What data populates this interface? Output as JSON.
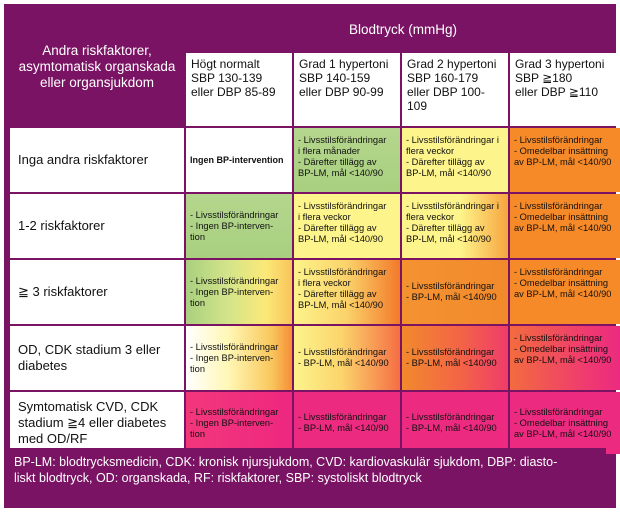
{
  "header": {
    "left": "Andra riskfaktorer, asymtomatisk organskada eller organsjukdom",
    "top": "Blodtryck (mmHg)"
  },
  "grades": [
    {
      "line1": "Högt normalt",
      "line2": "SBP 130-139",
      "line3": "eller DBP 85-89"
    },
    {
      "line1": "Grad 1 hypertoni",
      "line2": "SBP 140-159",
      "line3": "eller DBP 90-99"
    },
    {
      "line1": "Grad 2 hypertoni",
      "line2": "SBP 160-179",
      "line3": "eller DBP 100-109"
    },
    {
      "line1": "Grad 3 hypertoni",
      "line2": "SBP ≧180",
      "line3": "eller DBP ≧110"
    }
  ],
  "rows": [
    {
      "label": "Inga andra riskfaktorer",
      "cells": [
        "Ingen BP-intervention",
        "- Livsstilsförändringar\ni flera månader\n- Därefter tillägg av\nBP-LM, mål <140/90",
        "- Livsstilsförändringar i\nflera veckor\n- Därefter tillägg av\nBP-LM, mål <140/90",
        "- Livsstilsförändringar\n- Omedelbar insättning\nav BP-LM, mål <140/90"
      ]
    },
    {
      "label": "1-2 riskfaktorer",
      "cells": [
        "- Livsstilsförändringar\n- Ingen BP-interven-\ntion",
        "- Livsstilsförändringar\ni flera veckor\n- Därefter tillägg av\nBP-LM, mål <140/90",
        "- Livsstilsförändringar i\nflera veckor\n- Därefter tillägg av\nBP-LM, mål <140/90",
        "- Livsstilsförändringar\n- Omedelbar insättning\nav BP-LM, mål <140/90"
      ]
    },
    {
      "label": "≧ 3 riskfaktorer",
      "cells": [
        "- Livsstilsförändringar\n- Ingen BP-interven-\ntion",
        "- Livsstilsförändringar\ni flera veckor\n- Därefter tillägg av\nBP-LM, mål <140/90",
        "- Livsstilsförändringar\n- BP-LM, mål <140/90",
        "- Livsstilsförändringar\n- Omedelbar insättning\nav BP-LM, mål <140/90"
      ]
    },
    {
      "label": "OD, CDK stadium 3 eller diabetes",
      "cells": [
        "- Livsstilsförändringar\n- Ingen BP-interven-\ntion",
        "- Livsstilsförändringar\n- BP-LM, mål <140/90",
        "- Livsstilsförändringar\n- BP-LM, mål <140/90",
        "- Livsstilsförändringar\n- Omedelbar insättning\nav BP-LM, mål <140/90"
      ]
    },
    {
      "label": "Symtomatisk CVD, CDK stadium ≧4 eller diabetes med OD/RF",
      "cells": [
        "- Livsstilsförändringar\n- Ingen BP-interven-\ntion",
        "- Livsstilsförändringar\n- BP-LM, mål <140/90",
        "- Livsstilsförändringar\n- BP-LM, mål <140/90",
        "- Livsstilsförändringar\n- Omedelbar insättning\nav BP-LM, mål <140/90"
      ]
    }
  ],
  "footer": {
    "line1": "BP-LM: blodtrycksmedicin, CDK: kronisk njursjukdom, CVD: kardiovaskulär sjukdom, DBP: diasto-",
    "line2": "liskt blodtryck, OD: organskada, RF: riskfaktorer, SBP: systoliskt blodtryck"
  },
  "colors": {
    "frame": "#7a1363",
    "green": "#a8d07f",
    "yellow": "#fdf48b",
    "orange": "#f78a28",
    "pink": "#ec2b80"
  }
}
